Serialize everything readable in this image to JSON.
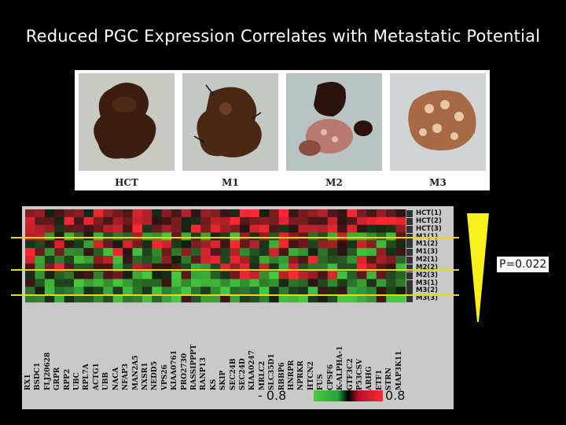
{
  "slide": {
    "title": "Reduced PGC Expression Correlates with Metastatic Potential"
  },
  "photos": [
    {
      "label": "HCT"
    },
    {
      "label": "M1"
    },
    {
      "label": "M2"
    },
    {
      "label": "M3"
    }
  ],
  "heatmap": {
    "row_labels": [
      "HCT(1)",
      "HCT(2)",
      "HCT(3)",
      "M1(1)",
      "M1(2)",
      "M1(3)",
      "M2(1)",
      "M2(2)",
      "M2(3)",
      "M3(1)",
      "M3(2)",
      "M3(3)"
    ],
    "column_labels": [
      "RX1",
      "BSDC1",
      "FLJ20628",
      "GRPR",
      "RPP2",
      "UBC",
      "RPL7A",
      "ACTG1",
      "UBB",
      "NACA",
      "NFAP3",
      "MAN2A5",
      "NXSR1",
      "NEDD5",
      "VPS26",
      "KIAA0761",
      "PRO2730",
      "RASSIPPPT",
      "RANP13",
      "KS",
      "SKIP",
      "SEC24B",
      "SEC24D",
      "KIAA0247",
      "MRLC2",
      "SLC35D1",
      "RBBP6",
      "HNRPR",
      "NPRKR",
      "HTCN2",
      "FUS",
      "CPSF6",
      "K-ALPHA-1",
      "GTF3C2",
      "P53CSV",
      "ARHG",
      "ETF1",
      "STRN",
      "MAP3K11"
    ],
    "scale_min_label": "- 0.8",
    "scale_max_label": "0.8",
    "colors": {
      "high": "#ff2a3a",
      "mid": "#000000",
      "low": "#4ecb3e"
    }
  },
  "significance": {
    "p_value_text": "P=0.022"
  }
}
